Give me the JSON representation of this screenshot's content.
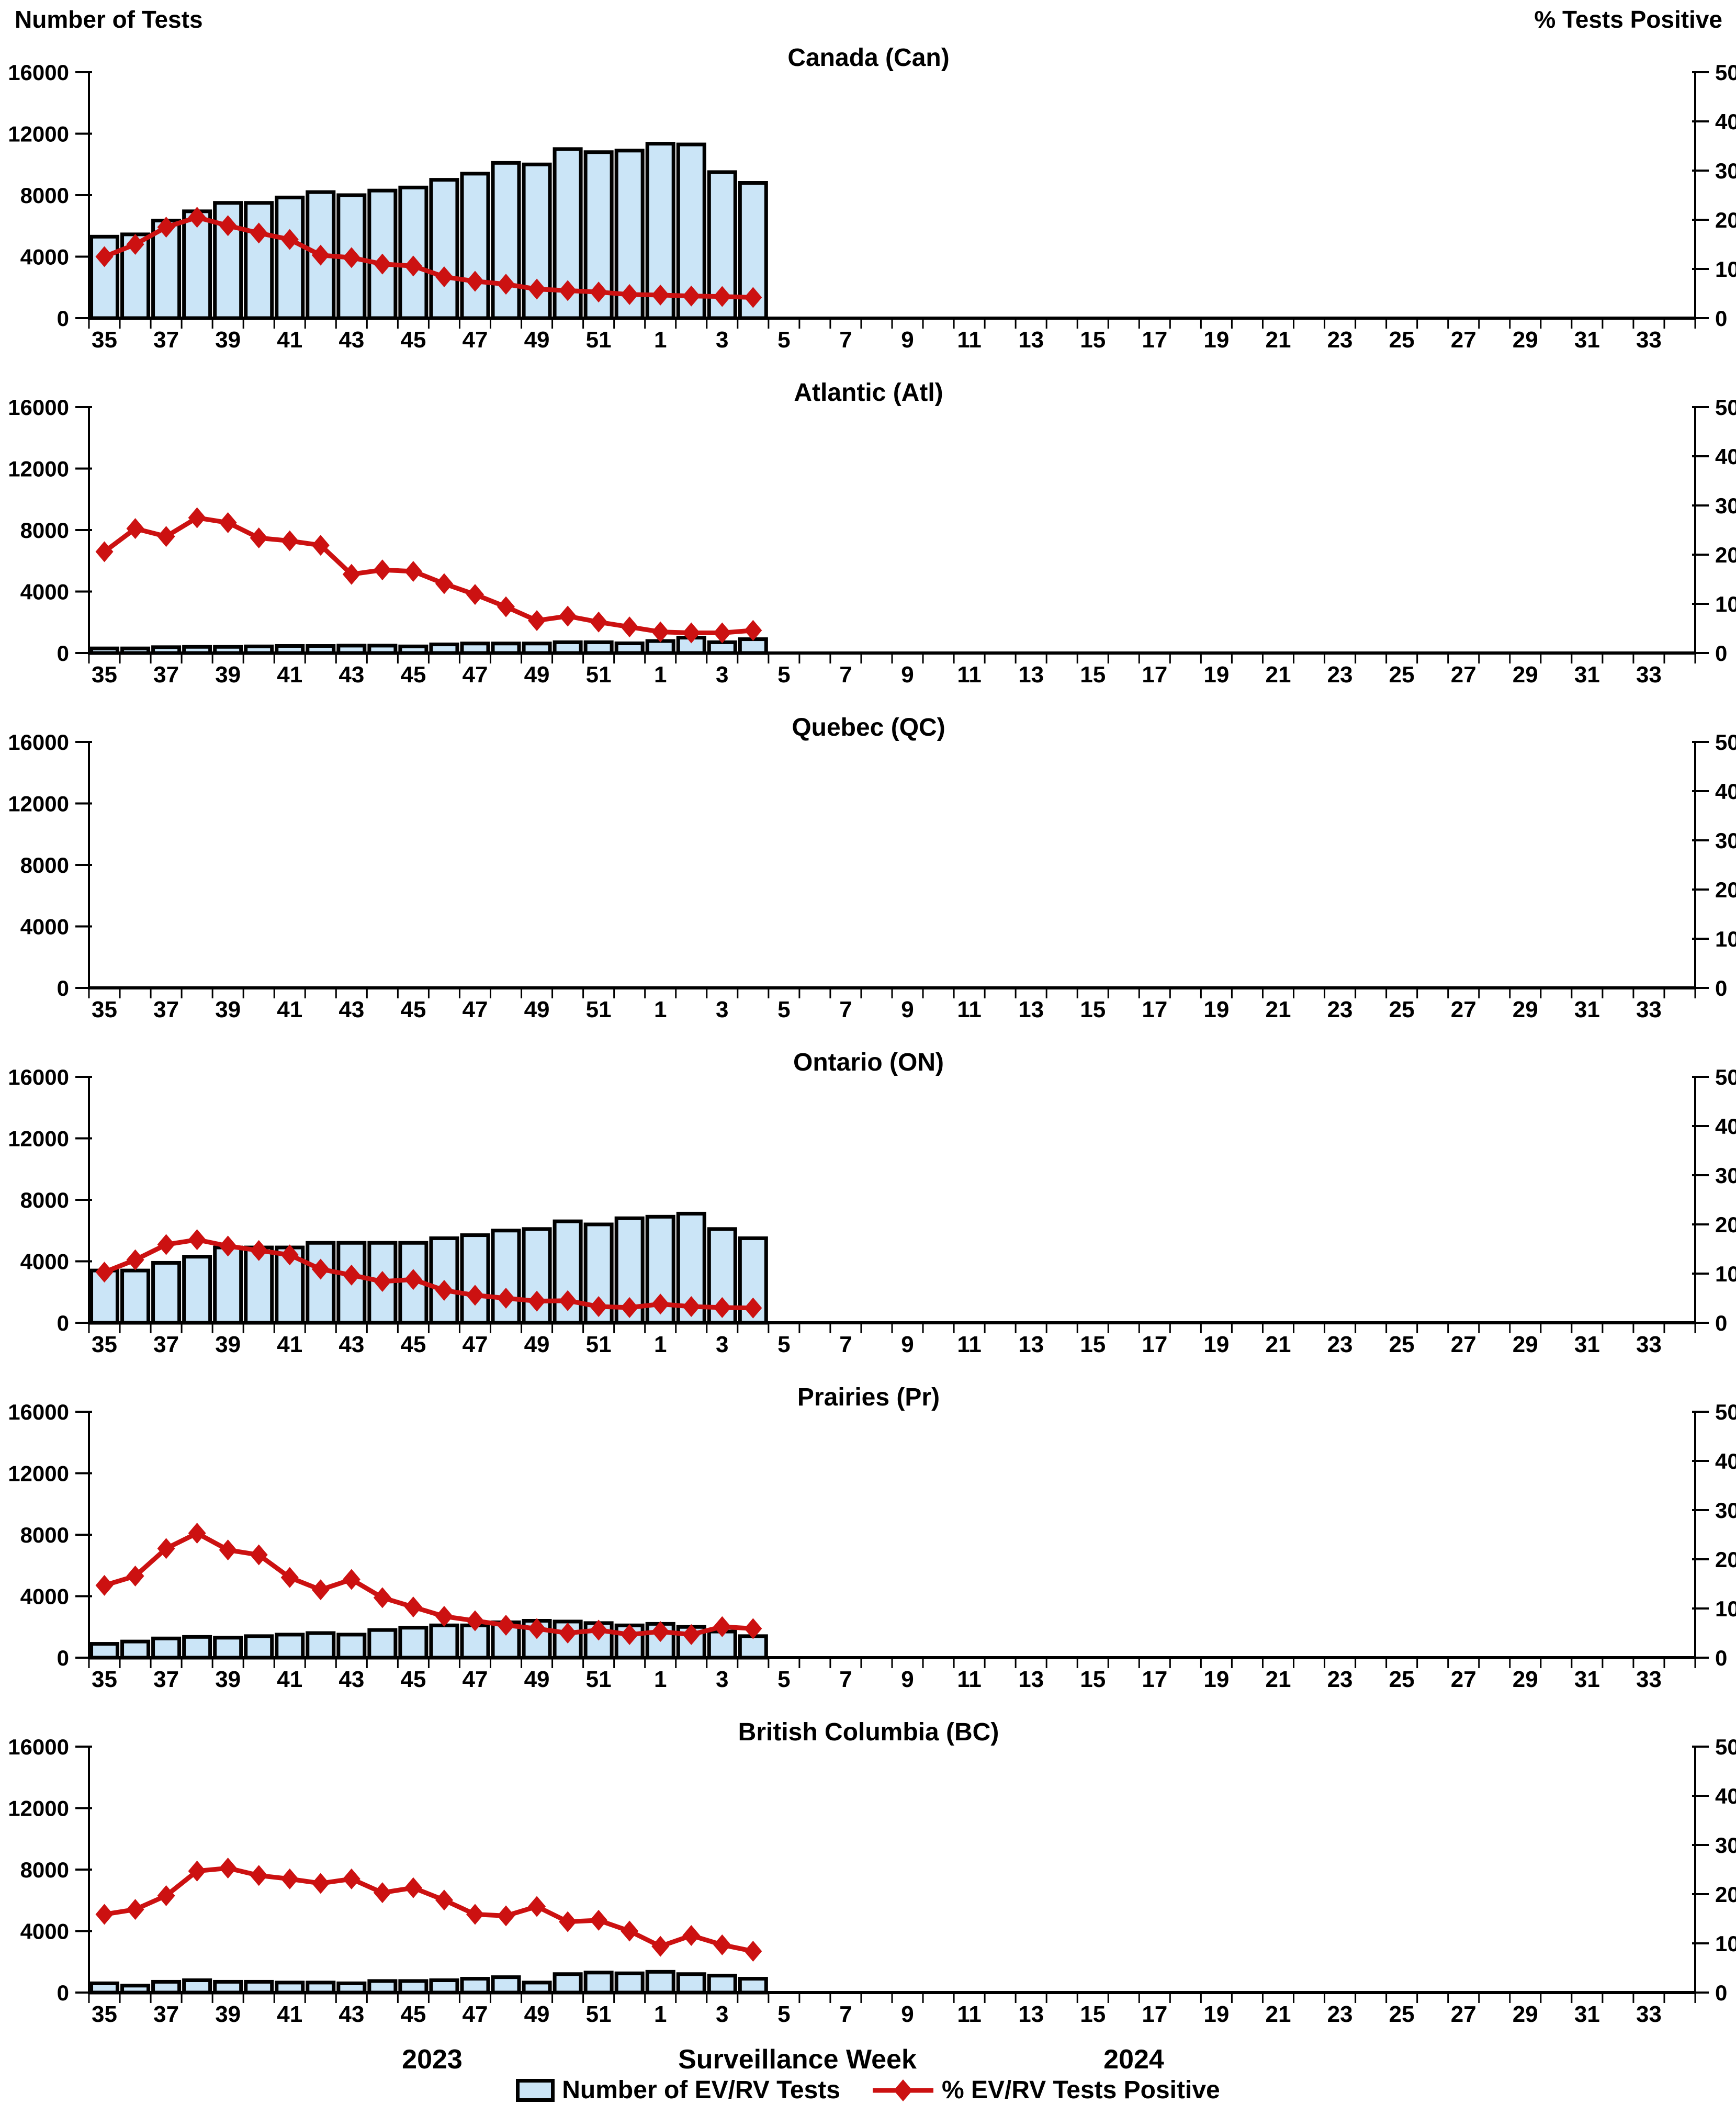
{
  "figure": {
    "left_axis_title": "Number of Tests",
    "right_axis_title": "% Tests Positive"
  },
  "x_axis": {
    "title": "Surveillance Week",
    "year_left": "2023",
    "year_right": "2024",
    "slot_count": 52,
    "tick_labels": [
      "35",
      "37",
      "39",
      "41",
      "43",
      "45",
      "47",
      "49",
      "51",
      "1",
      "3",
      "5",
      "7",
      "9",
      "11",
      "13",
      "15",
      "17",
      "19",
      "21",
      "23",
      "25",
      "27",
      "29",
      "31",
      "33"
    ]
  },
  "y_axis_left": {
    "title": "Number of Tests",
    "min": 0,
    "max": 16000,
    "ticks": [
      "0",
      "4000",
      "8000",
      "12000",
      "16000"
    ]
  },
  "y_axis_right": {
    "title": "% Tests Positive",
    "min": 0,
    "max": 50,
    "ticks": [
      "0",
      "10",
      "20",
      "30",
      "40",
      "50"
    ]
  },
  "legend": {
    "bar_label": "Number of EV/RV Tests",
    "line_label": "% EV/RV Tests Positive",
    "bar_fill": "#CBE5F7",
    "bar_border": "#000000",
    "line_color": "#CC1111"
  },
  "chart_data": [
    {
      "type": "bar+line",
      "title": "Canada (Can)",
      "categories": [
        "35",
        "36",
        "37",
        "38",
        "39",
        "40",
        "41",
        "42",
        "43",
        "44",
        "45",
        "46",
        "47",
        "48",
        "49",
        "50",
        "51",
        "52",
        "1",
        "2",
        "3",
        "4"
      ],
      "ylim_left": [
        0,
        16000
      ],
      "ylim_right": [
        0,
        50
      ],
      "series": [
        {
          "name": "Number of EV/RV Tests",
          "type": "bar",
          "axis": "left",
          "values": [
            5300,
            5450,
            6350,
            6950,
            7500,
            7500,
            7850,
            8200,
            8000,
            8300,
            8500,
            9000,
            9400,
            10100,
            10000,
            11000,
            10800,
            10900,
            11350,
            11300,
            9500,
            8800
          ]
        },
        {
          "name": "% EV/RV Tests Positive",
          "type": "line",
          "axis": "right",
          "values": [
            12.5,
            15.0,
            18.5,
            20.5,
            18.8,
            17.3,
            16.0,
            12.8,
            12.3,
            11.0,
            10.6,
            8.4,
            7.5,
            6.9,
            5.9,
            5.6,
            5.3,
            4.8,
            4.7,
            4.5,
            4.4,
            4.2
          ]
        }
      ]
    },
    {
      "type": "bar+line",
      "title": "Atlantic (Atl)",
      "categories": [
        "35",
        "36",
        "37",
        "38",
        "39",
        "40",
        "41",
        "42",
        "43",
        "44",
        "45",
        "46",
        "47",
        "48",
        "49",
        "50",
        "51",
        "52",
        "1",
        "2",
        "3",
        "4"
      ],
      "ylim_left": [
        0,
        16000
      ],
      "ylim_right": [
        0,
        50
      ],
      "series": [
        {
          "name": "Number of EV/RV Tests",
          "type": "bar",
          "axis": "left",
          "values": [
            300,
            300,
            380,
            400,
            400,
            430,
            460,
            460,
            480,
            480,
            430,
            560,
            620,
            620,
            620,
            700,
            700,
            630,
            780,
            1000,
            700,
            900
          ]
        },
        {
          "name": "% EV/RV Tests Positive",
          "type": "line",
          "axis": "right",
          "values": [
            20.6,
            25.3,
            23.7,
            27.5,
            26.5,
            23.4,
            22.8,
            21.9,
            16.0,
            16.9,
            16.6,
            14.1,
            11.9,
            9.4,
            6.6,
            7.5,
            6.3,
            5.3,
            4.3,
            4.1,
            4.1,
            4.6
          ]
        }
      ]
    },
    {
      "type": "bar+line",
      "title": "Quebec (QC)",
      "categories": [],
      "ylim_left": [
        0,
        16000
      ],
      "ylim_right": [
        0,
        50
      ],
      "series": [
        {
          "name": "Number of EV/RV Tests",
          "type": "bar",
          "axis": "left",
          "values": []
        },
        {
          "name": "% EV/RV Tests Positive",
          "type": "line",
          "axis": "right",
          "values": []
        }
      ]
    },
    {
      "type": "bar+line",
      "title": "Ontario (ON)",
      "categories": [
        "35",
        "36",
        "37",
        "38",
        "39",
        "40",
        "41",
        "42",
        "43",
        "44",
        "45",
        "46",
        "47",
        "48",
        "49",
        "50",
        "51",
        "52",
        "1",
        "2",
        "3",
        "4"
      ],
      "ylim_left": [
        0,
        16000
      ],
      "ylim_right": [
        0,
        50
      ],
      "series": [
        {
          "name": "Number of EV/RV Tests",
          "type": "bar",
          "axis": "left",
          "values": [
            3400,
            3400,
            3900,
            4300,
            4900,
            4900,
            4900,
            5200,
            5200,
            5200,
            5200,
            5500,
            5700,
            6000,
            6100,
            6600,
            6400,
            6800,
            6900,
            7100,
            6100,
            5500
          ]
        },
        {
          "name": "% EV/RV Tests Positive",
          "type": "line",
          "axis": "right",
          "values": [
            10.3,
            12.8,
            15.9,
            16.9,
            15.6,
            14.7,
            13.8,
            10.9,
            9.7,
            8.4,
            8.8,
            6.6,
            5.6,
            5.0,
            4.4,
            4.5,
            3.3,
            3.1,
            3.8,
            3.3,
            3.1,
            3.0
          ]
        }
      ]
    },
    {
      "type": "bar+line",
      "title": "Prairies (Pr)",
      "categories": [
        "35",
        "36",
        "37",
        "38",
        "39",
        "40",
        "41",
        "42",
        "43",
        "44",
        "45",
        "46",
        "47",
        "48",
        "49",
        "50",
        "51",
        "52",
        "1",
        "2",
        "3",
        "4"
      ],
      "ylim_left": [
        0,
        16000
      ],
      "ylim_right": [
        0,
        50
      ],
      "series": [
        {
          "name": "Number of EV/RV Tests",
          "type": "bar",
          "axis": "left",
          "values": [
            900,
            1050,
            1250,
            1350,
            1300,
            1400,
            1500,
            1600,
            1500,
            1800,
            1950,
            2100,
            2100,
            2300,
            2400,
            2350,
            2250,
            2100,
            2200,
            2000,
            1700,
            1400
          ]
        },
        {
          "name": "% EV/RV Tests Positive",
          "type": "line",
          "axis": "right",
          "values": [
            14.7,
            16.6,
            22.2,
            25.3,
            21.9,
            20.9,
            16.3,
            13.8,
            15.9,
            12.2,
            10.3,
            8.4,
            7.5,
            6.6,
            5.9,
            5.0,
            5.6,
            4.7,
            5.3,
            4.7,
            6.3,
            5.9
          ]
        }
      ]
    },
    {
      "type": "bar+line",
      "title": "British Columbia (BC)",
      "categories": [
        "35",
        "36",
        "37",
        "38",
        "39",
        "40",
        "41",
        "42",
        "43",
        "44",
        "45",
        "46",
        "47",
        "48",
        "49",
        "50",
        "51",
        "52",
        "1",
        "2",
        "3",
        "4"
      ],
      "ylim_left": [
        0,
        16000
      ],
      "ylim_right": [
        0,
        50
      ],
      "series": [
        {
          "name": "Number of EV/RV Tests",
          "type": "bar",
          "axis": "left",
          "values": [
            600,
            450,
            700,
            800,
            700,
            700,
            650,
            650,
            600,
            750,
            750,
            800,
            900,
            1000,
            650,
            1200,
            1300,
            1250,
            1350,
            1200,
            1100,
            900
          ]
        },
        {
          "name": "% EV/RV Tests Positive",
          "type": "line",
          "axis": "right",
          "values": [
            15.9,
            16.9,
            19.7,
            24.7,
            25.3,
            23.8,
            23.1,
            22.2,
            23.1,
            20.3,
            21.3,
            18.8,
            15.9,
            15.6,
            17.5,
            14.4,
            14.7,
            12.5,
            9.4,
            11.6,
            9.7,
            8.4
          ]
        }
      ]
    }
  ]
}
